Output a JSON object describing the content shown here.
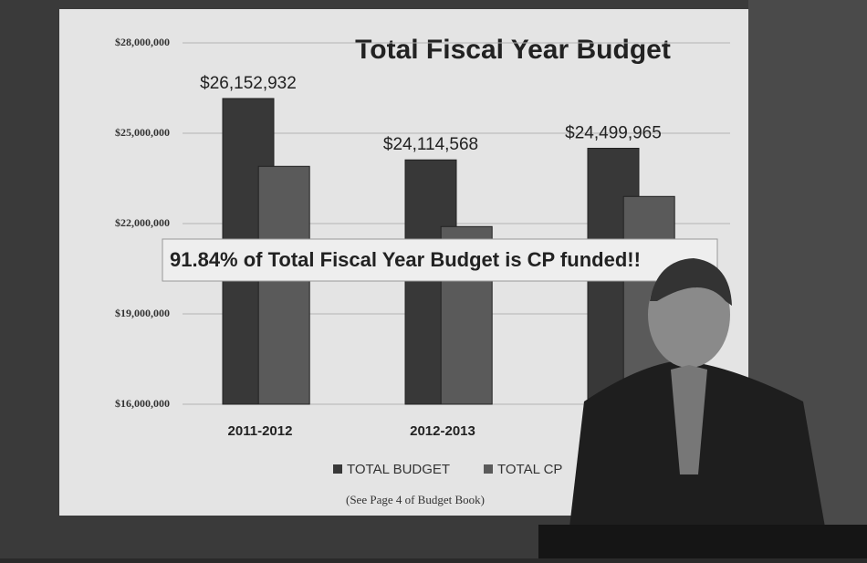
{
  "chart_data": {
    "type": "bar",
    "title": "Total Fiscal Year Budget",
    "annotation": "91.84% of Total Fiscal Year Budget is CP funded!!",
    "footnote": "(See Page 4 of Budget Book)",
    "categories": [
      "2011-2012",
      "2012-2013",
      null
    ],
    "series": [
      {
        "name": "TOTAL BUDGET",
        "color": "#383838",
        "values": [
          26152932,
          24114568,
          24499965
        ],
        "value_labels": [
          "$26,152,932",
          "$24,114,568",
          "$24,499,965"
        ]
      },
      {
        "name": "TOTAL CP",
        "color": "#5a5a5a",
        "values": [
          23900000,
          21900000,
          22900000
        ]
      }
    ],
    "ylim": [
      16000000,
      28000000
    ],
    "yticks": [
      {
        "value": 16000000,
        "label": "$16,000,000"
      },
      {
        "value": 19000000,
        "label": "$19,000,000"
      },
      {
        "value": 22000000,
        "label": "$22,000,000"
      },
      {
        "value": 25000000,
        "label": "$25,000,000"
      },
      {
        "value": 28000000,
        "label": "$28,000,000"
      }
    ],
    "grid": true
  }
}
